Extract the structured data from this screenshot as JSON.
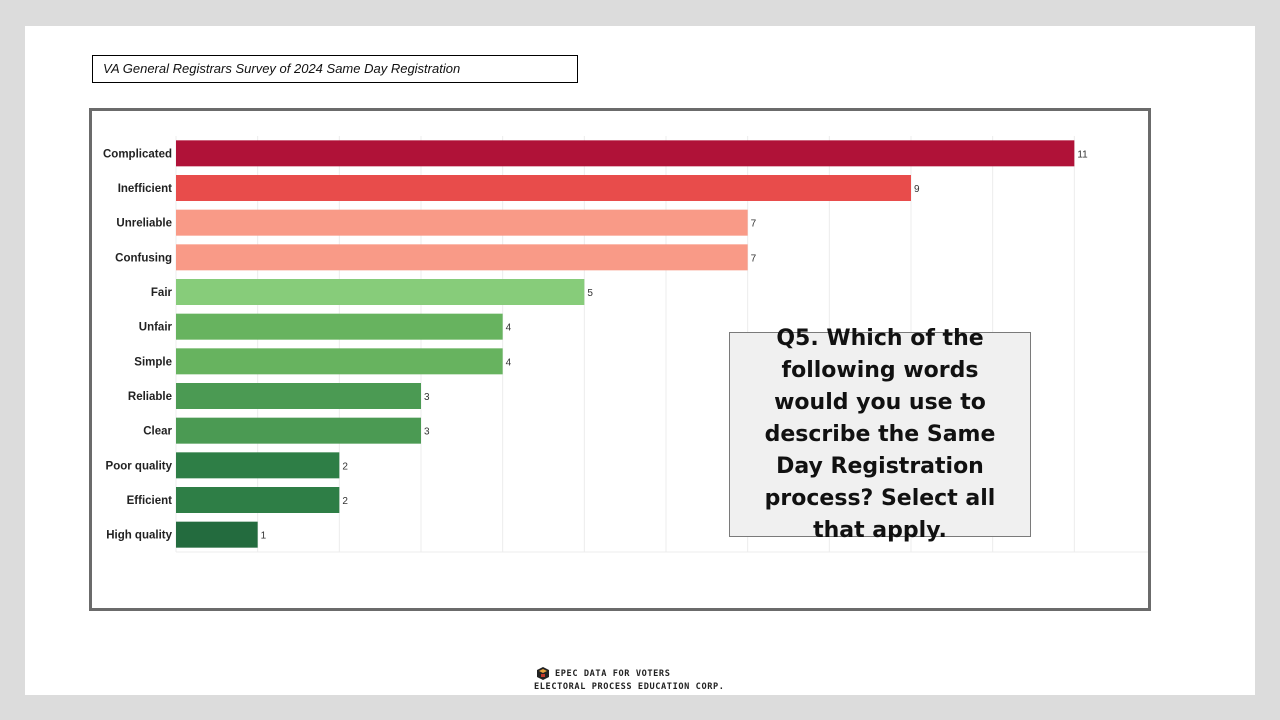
{
  "header": {
    "title": "VA General Registrars Survey of 2024 Same Day Registration"
  },
  "question": {
    "text": "Q5. Which of the following words would you use to describe the Same Day Registration process? Select all that apply."
  },
  "footer": {
    "line1": "EPEC DATA FOR VOTERS",
    "line2": "ELECTORAL PROCESS EDUCATION CORP."
  },
  "chart_data": {
    "type": "bar",
    "orientation": "horizontal",
    "categories": [
      "Complicated",
      "Inefficient",
      "Unreliable",
      "Confusing",
      "Fair",
      "Unfair",
      "Simple",
      "Reliable",
      "Clear",
      "Poor quality",
      "Efficient",
      "High quality"
    ],
    "values": [
      11,
      9,
      7,
      7,
      5,
      4,
      4,
      3,
      3,
      2,
      2,
      1
    ],
    "colors": [
      "#b01238",
      "#e84c4b",
      "#f99a87",
      "#f99a87",
      "#87cc7a",
      "#67b35f",
      "#67b35f",
      "#4b9a53",
      "#4b9a53",
      "#2e7e46",
      "#2e7e46",
      "#236b3e"
    ],
    "xlim": [
      0,
      12
    ],
    "grid": true,
    "data_labels": true
  }
}
